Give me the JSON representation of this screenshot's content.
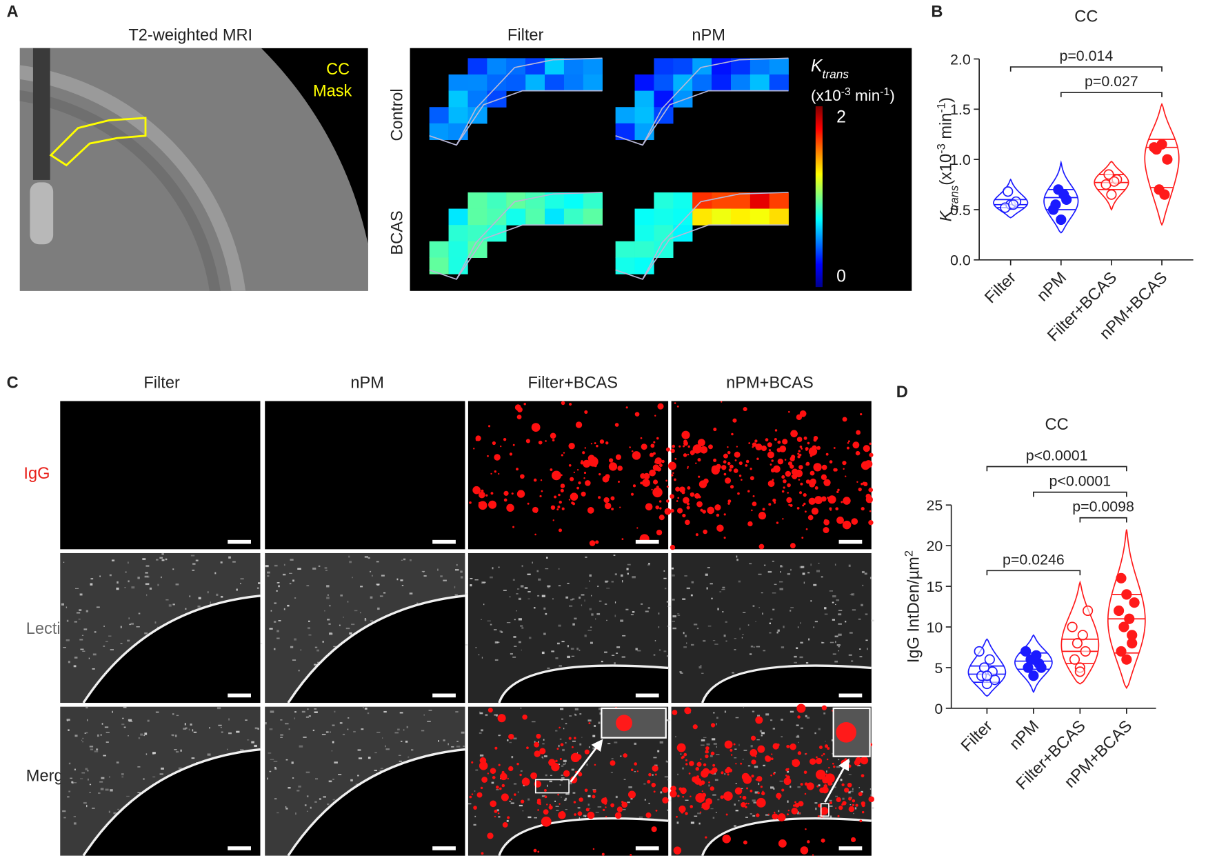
{
  "panel_a": {
    "label": "A",
    "mri_title": "T2-weighted MRI",
    "mask_legend": [
      "CC",
      "Mask"
    ],
    "columns": [
      "Filter",
      "nPM"
    ],
    "rows": [
      "Control",
      "BCAS"
    ],
    "colorbar": {
      "symbol": "K",
      "symbol_sub": "trans",
      "unit": [
        "(x10",
        "-3",
        " min",
        "-1",
        ")"
      ],
      "ticks": [
        0,
        2
      ]
    }
  },
  "panel_c": {
    "label": "C",
    "columns": [
      "Filter",
      "nPM",
      "Filter+BCAS",
      "nPM+BCAS"
    ],
    "rows": [
      "IgG",
      "Lectin",
      "Merge"
    ]
  },
  "chart_data": [
    {
      "type": "violin",
      "panel_label": "B",
      "title": "CC",
      "y_label": {
        "symbol": "K",
        "symbol_sub": "trans",
        "unit": [
          "(x10",
          "-3",
          " min",
          "-1",
          ")"
        ]
      },
      "categories": [
        "Filter",
        "nPM",
        "Filter+BCAS",
        "nPM+BCAS"
      ],
      "groups": [
        {
          "color": "#1a1aff",
          "filled": false,
          "values": [
            0.55,
            0.52,
            0.58,
            0.68,
            0.55
          ],
          "range": [
            0.42,
            0.8
          ],
          "quartiles": [
            0.52,
            0.55,
            0.6
          ]
        },
        {
          "color": "#1a1aff",
          "filled": true,
          "values": [
            0.4,
            0.55,
            0.6,
            0.7,
            0.65,
            0.5
          ],
          "range": [
            0.27,
            0.97
          ],
          "quartiles": [
            0.5,
            0.62,
            0.7
          ]
        },
        {
          "color": "#ff1a1a",
          "filled": false,
          "values": [
            0.65,
            0.75,
            0.8,
            0.85,
            0.78
          ],
          "range": [
            0.5,
            0.98
          ],
          "quartiles": [
            0.7,
            0.77,
            0.85
          ]
        },
        {
          "color": "#ff1a1a",
          "filled": true,
          "values": [
            1.15,
            1.1,
            1.0,
            0.7,
            0.65,
            1.12
          ],
          "range": [
            0.35,
            1.55
          ],
          "quartiles": [
            0.72,
            1.12,
            1.2
          ]
        }
      ],
      "ylim": [
        0,
        2
      ],
      "yticks": [
        {
          "value": 0,
          "label": "0.0"
        },
        0.5,
        {
          "value": 1,
          "label": "1.0"
        },
        1.5,
        {
          "value": 2,
          "label": "2.0"
        }
      ],
      "comparisons": [
        {
          "from": 0,
          "to": 3,
          "label": "p=0.014"
        },
        {
          "from": 1,
          "to": 3,
          "label": "p=0.027"
        }
      ]
    },
    {
      "type": "violin",
      "panel_label": "D",
      "title": "CC",
      "y_label": {
        "unit": [
          "IgG IntDen/µm",
          "2"
        ]
      },
      "categories": [
        "Filter",
        "nPM",
        "Filter+BCAS",
        "nPM+BCAS"
      ],
      "groups": [
        {
          "color": "#1a1aff",
          "filled": false,
          "values": [
            3,
            4,
            4.5,
            5,
            6,
            7,
            3.5,
            4
          ],
          "range": [
            1.5,
            8.5
          ],
          "quartiles": [
            3.2,
            4.2,
            5.2
          ]
        },
        {
          "color": "#1a1aff",
          "filled": true,
          "values": [
            4,
            5,
            5.5,
            6,
            6.5,
            7,
            5,
            6
          ],
          "range": [
            2,
            9
          ],
          "quartiles": [
            4.8,
            5.8,
            6.8
          ]
        },
        {
          "color": "#ff1a1a",
          "filled": false,
          "values": [
            5,
            6,
            7,
            8,
            9,
            10,
            12,
            4.5
          ],
          "range": [
            3,
            15.5
          ],
          "quartiles": [
            5.5,
            7,
            8.5
          ]
        },
        {
          "color": "#ff1a1a",
          "filled": true,
          "values": [
            6,
            7,
            9,
            10,
            11,
            12,
            13,
            14,
            16,
            8
          ],
          "range": [
            2.5,
            22
          ],
          "quartiles": [
            6.8,
            11,
            14
          ]
        }
      ],
      "ylim": [
        0,
        25
      ],
      "yticks": [
        0,
        5,
        10,
        15,
        20,
        25
      ],
      "comparisons": [
        {
          "from": 0,
          "to": 3,
          "label": "p<0.0001"
        },
        {
          "from": 1,
          "to": 3,
          "label": "p<0.0001"
        },
        {
          "from": 2,
          "to": 3,
          "label": "p=0.0098"
        },
        {
          "from": 0,
          "to": 2,
          "label": "p=0.0246"
        }
      ]
    }
  ]
}
